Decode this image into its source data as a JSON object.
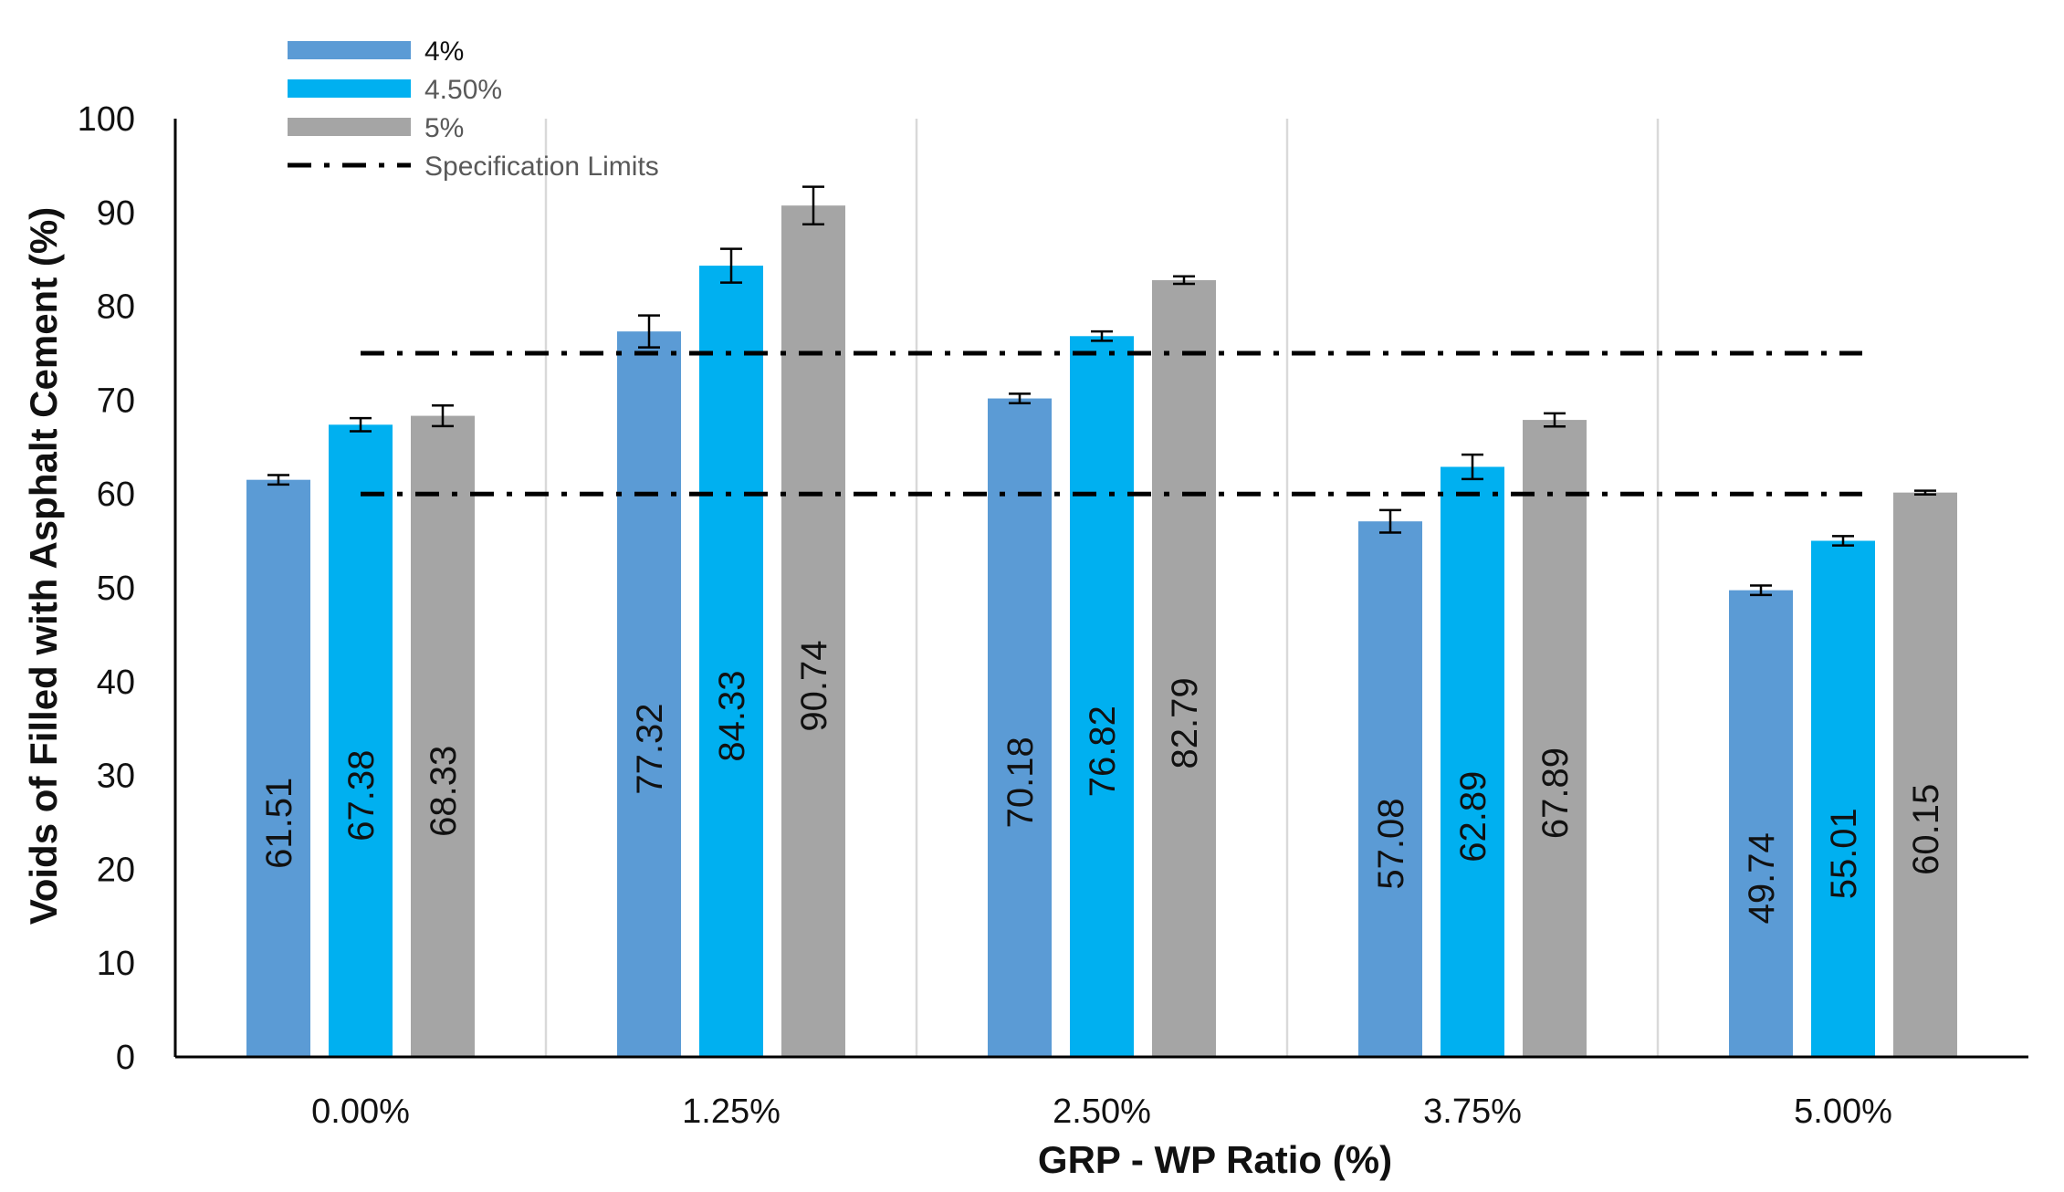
{
  "chart_data": {
    "type": "bar",
    "title": "",
    "xlabel": "GRP - WP Ratio (%)",
    "ylabel": "Voids of Filled with Asphalt Cement (%)",
    "categories": [
      "0.00%",
      "1.25%",
      "2.50%",
      "3.75%",
      "5.00%"
    ],
    "ylim": [
      0,
      100
    ],
    "yticks": [
      0,
      10,
      20,
      30,
      40,
      50,
      60,
      70,
      80,
      90,
      100
    ],
    "series": [
      {
        "name": "4%",
        "color": "#5B9BD5",
        "values": [
          61.51,
          77.32,
          70.18,
          57.08,
          49.74
        ],
        "errors": [
          0.5,
          1.7,
          0.5,
          1.2,
          0.5
        ]
      },
      {
        "name": "4.50%",
        "color": "#00B0F0",
        "values": [
          67.38,
          84.33,
          76.82,
          62.89,
          55.01
        ],
        "errors": [
          0.7,
          1.8,
          0.5,
          1.3,
          0.5
        ]
      },
      {
        "name": "5%",
        "color": "#A5A5A5",
        "values": [
          68.33,
          90.74,
          82.79,
          67.89,
          60.15
        ],
        "errors": [
          1.1,
          2.0,
          0.4,
          0.7,
          0.2
        ]
      }
    ],
    "spec_limits": {
      "name": "Specification Limits",
      "values": [
        60,
        75
      ],
      "color": "#000000"
    },
    "legend_position": "top-left",
    "grid": "vertical category separators"
  }
}
